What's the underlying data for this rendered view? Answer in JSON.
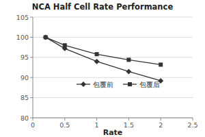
{
  "chart_data": {
    "type": "line",
    "title": "NCA Half Cell Rate Performance",
    "x_label": "Rate",
    "x": [
      0.2,
      0.5,
      1,
      1.5,
      2
    ],
    "series": [
      {
        "name": "包覆前",
        "color": "#333333",
        "marker": "diamond",
        "values": [
          100,
          97.2,
          94,
          91.5,
          89.2
        ]
      },
      {
        "name": "包覆后",
        "color": "#333333",
        "marker": "square",
        "values": [
          100,
          98,
          95.8,
          94.4,
          93.2
        ]
      }
    ],
    "xlim": [
      0,
      2.5
    ],
    "xticks": [
      0,
      0.5,
      1,
      1.5,
      2,
      2.5
    ],
    "ylim": [
      80,
      105
    ],
    "yticks": [
      80,
      85,
      90,
      95,
      100,
      105
    ],
    "grid": true,
    "legend": "center"
  }
}
